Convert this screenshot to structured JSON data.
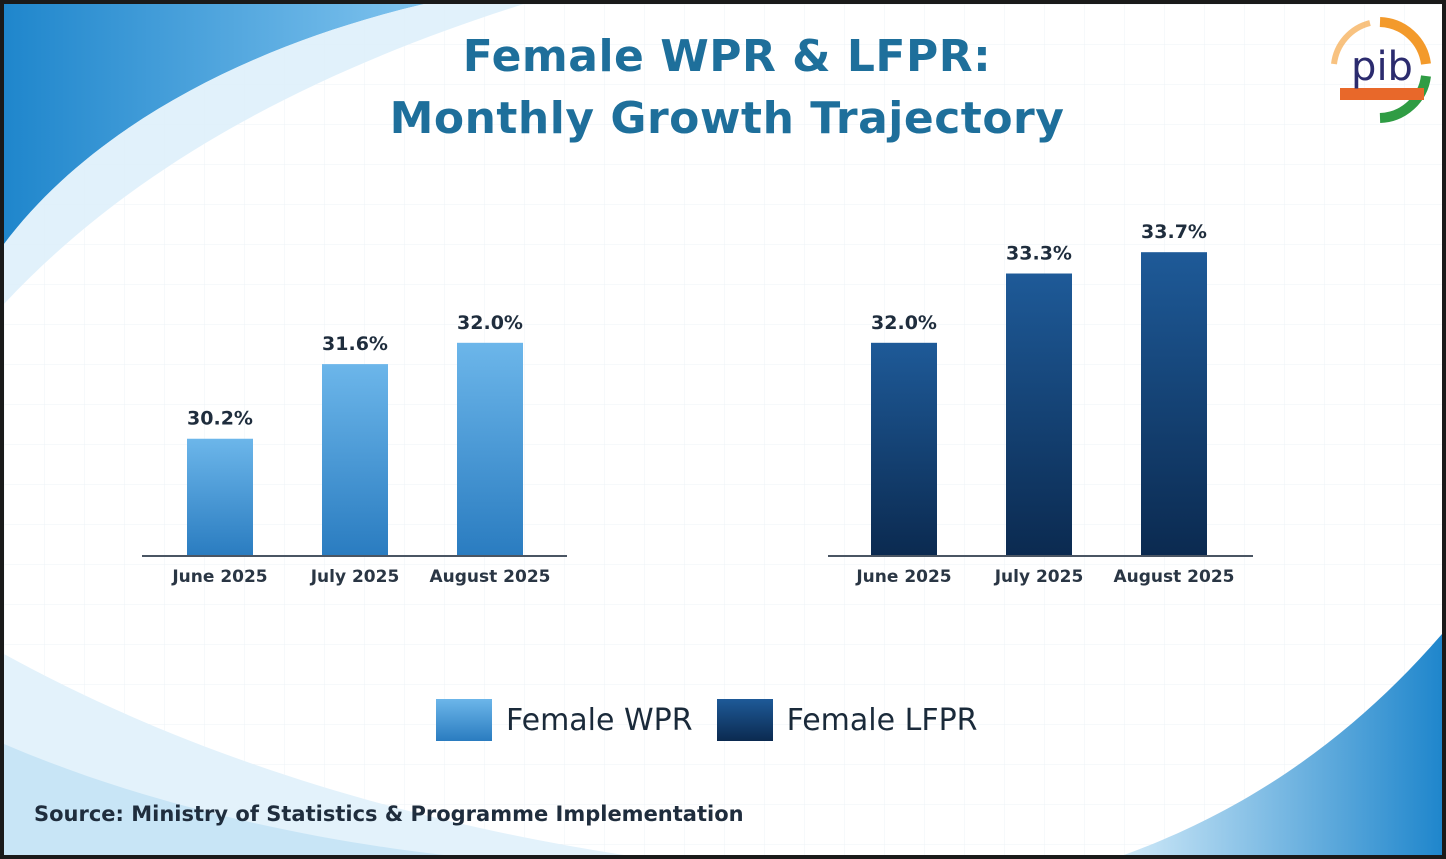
{
  "title": {
    "line1": "Female WPR & LFPR:",
    "line2": "Monthly Growth Trajectory"
  },
  "source": "Source: Ministry of Statistics & Programme Implementation",
  "logo": {
    "icon": "pib-logo-icon",
    "text": "pib"
  },
  "legend": [
    {
      "label": "Female WPR",
      "color_top": "#6cb6ea",
      "color_bottom": "#2a7cc0"
    },
    {
      "label": "Female LFPR",
      "color_top": "#1e5a98",
      "color_bottom": "#0b2a50"
    }
  ],
  "chart_data": [
    {
      "type": "bar",
      "categories": [
        "June 2025",
        "July 2025",
        "August 2025"
      ],
      "series": [
        {
          "name": "Female WPR",
          "values": [
            30.2,
            31.6,
            32.0
          ]
        }
      ],
      "value_labels": [
        "30.2%",
        "31.6%",
        "32.0%"
      ],
      "colors": {
        "top": "#6cb6ea",
        "bottom": "#2a7cc0"
      }
    },
    {
      "type": "bar",
      "categories": [
        "June 2025",
        "July 2025",
        "August 2025"
      ],
      "series": [
        {
          "name": "Female LFPR",
          "values": [
            32.0,
            33.3,
            33.7
          ]
        }
      ],
      "value_labels": [
        "32.0%",
        "33.3%",
        "33.7%"
      ],
      "colors": {
        "top": "#1e5a98",
        "bottom": "#0b2a50"
      }
    }
  ]
}
